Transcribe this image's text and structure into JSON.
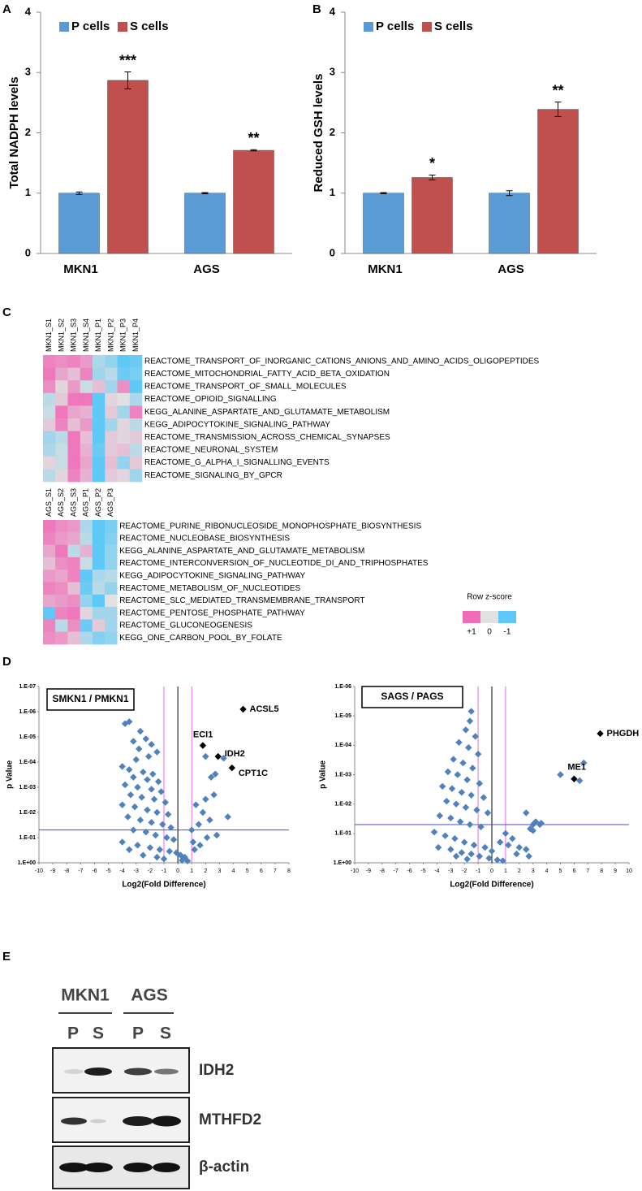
{
  "panel_labels": [
    "A",
    "B",
    "C",
    "D",
    "E"
  ],
  "chart_data": [
    {
      "type": "bar",
      "ylabel": "Total NADPH levels",
      "categories": [
        "MKN1",
        "AGS"
      ],
      "series": [
        {
          "name": "P cells",
          "color": "#5b9bd5",
          "values": [
            1,
            1
          ],
          "errors": [
            0.02,
            0.01
          ]
        },
        {
          "name": "S cells",
          "color": "#c0504d",
          "values": [
            2.87,
            1.71
          ],
          "errors": [
            0.14,
            0.01
          ],
          "significance": [
            "***",
            "**"
          ]
        }
      ],
      "ylim": [
        0,
        4
      ],
      "yticks": [
        0,
        1,
        2,
        3,
        4
      ],
      "legend": "top-left"
    },
    {
      "type": "bar",
      "ylabel": "Reduced GSH levels",
      "categories": [
        "MKN1",
        "AGS"
      ],
      "series": [
        {
          "name": "P cells",
          "color": "#5b9bd5",
          "values": [
            1,
            1
          ],
          "errors": [
            0.01,
            0.04
          ]
        },
        {
          "name": "S cells",
          "color": "#c0504d",
          "values": [
            1.26,
            2.39
          ],
          "errors": [
            0.04,
            0.12
          ],
          "significance": [
            "*",
            "**"
          ]
        }
      ],
      "ylim": [
        0,
        4
      ],
      "yticks": [
        0,
        1,
        2,
        3,
        4
      ],
      "legend": "top-left"
    },
    {
      "type": "heatmap",
      "columns": [
        "MKN1_S1",
        "MKN1_S2",
        "MKN1_S3",
        "MKN1_S4",
        "MKN1_P1",
        "MKN1_P2",
        "MKN1_P3",
        "MKN1_P4"
      ],
      "rows": [
        "REACTOME_TRANSPORT_OF_INORGANIC_CATIONS_ANIONS_AND_AMINO_ACIDS_OLIGOPEPTIDES",
        "REACTOME_MITOCHONDRIAL_FATTY_ACID_BETA_OXIDATION",
        "REACTOME_TRANSPORT_OF_SMALL_MOLECULES",
        "REACTOME_OPIOID_SIGNALLING",
        "KEGG_ALANINE_ASPARTATE_AND_GLUTAMATE_METABOLISM",
        "KEGG_ADIPOCYTOKINE_SIGNALING_PATHWAY",
        "REACTOME_TRANSMISSION_ACROSS_CHEMICAL_SYNAPSES",
        "REACTOME_NEURONAL_SYSTEM",
        "REACTOME_G_ALPHA_I_SIGNALLING_EVENTS",
        "REACTOME_SIGNALING_BY_GPCR"
      ],
      "values": [
        [
          0.8,
          0.7,
          0.8,
          0.6,
          -0.4,
          -0.6,
          -1,
          -0.9
        ],
        [
          0.9,
          0.5,
          0.3,
          0.8,
          -0.5,
          -0.3,
          -0.9,
          -0.8
        ],
        [
          0.7,
          0.1,
          0.6,
          -0.2,
          0.3,
          -0.5,
          0.7,
          -1
        ],
        [
          -0.3,
          0.2,
          0.9,
          0.9,
          -1,
          0.1,
          0,
          -0.4
        ],
        [
          -0.2,
          0.9,
          0.5,
          0.4,
          -1,
          0.2,
          -0.5,
          0.8
        ],
        [
          0.2,
          0.8,
          0.3,
          0.6,
          -1,
          -0.5,
          0.1,
          -0.3
        ],
        [
          -0.5,
          -0.3,
          0.9,
          0.3,
          -1,
          0.2,
          0.1,
          0.2
        ],
        [
          -0.4,
          -0.2,
          0.9,
          0.4,
          -0.9,
          0.2,
          0.3,
          -0.3
        ],
        [
          0.1,
          -0.2,
          0.9,
          0.5,
          -1,
          0.3,
          -0.6,
          0.2
        ],
        [
          -0.3,
          0.1,
          0.8,
          0.4,
          -1,
          0.2,
          0.1,
          -0.5
        ]
      ],
      "zlim": [
        -1,
        1
      ],
      "colors": {
        "low": "#5ec9f7",
        "mid": "#e1e1e1",
        "high": "#f06bb8"
      }
    },
    {
      "type": "heatmap",
      "columns": [
        "AGS_S1",
        "AGS_S2",
        "AGS_S3",
        "AGS_P1",
        "AGS_P2",
        "AGS_P3"
      ],
      "rows": [
        "REACTOME_PURINE_RIBONUCLEOSIDE_MONOPHOSPHATE_BIOSYNTHESIS",
        "REACTOME_NUCLEOBASE_BIOSYNTHESIS",
        "KEGG_ALANINE_ASPARTATE_AND_GLUTAMATE_METABOLISM",
        "REACTOME_INTERCONVERSION_OF_NUCLEOTIDE_DI_AND_TRIPHOSPHATES",
        "KEGG_ADIPOCYTOKINE_SIGNALING_PATHWAY",
        "REACTOME_METABOLISM_OF_NUCLEOTIDES",
        "REACTOME_SLC_MEDIATED_TRANSMEMBRANE_TRANSPORT",
        "REACTOME_PENTOSE_PHOSPHATE_PATHWAY",
        "REACTOME_GLUCONEOGENESIS",
        "KEGG_ONE_CARBON_POOL_BY_FOLATE"
      ],
      "values": [
        [
          0.9,
          0.7,
          0.6,
          -0.4,
          -1,
          -0.8
        ],
        [
          0.8,
          0.6,
          0.5,
          -0.3,
          -1,
          -0.7
        ],
        [
          0.5,
          0.9,
          -0.3,
          0.4,
          -1,
          -0.6
        ],
        [
          0.3,
          0.7,
          0.8,
          -0.2,
          -1,
          -0.6
        ],
        [
          0.6,
          0.5,
          0.8,
          -1,
          -0.4,
          -0.3
        ],
        [
          0.8,
          0.7,
          0.3,
          -0.9,
          -0.3,
          -0.6
        ],
        [
          0.5,
          0.6,
          0.7,
          -0.6,
          -1,
          0.0
        ],
        [
          -1,
          0.8,
          0.9,
          0.1,
          -0.5,
          -0.5
        ],
        [
          0.8,
          -0.3,
          0.7,
          -0.9,
          0.2,
          -0.5
        ],
        [
          0.7,
          0.6,
          0.3,
          -0.4,
          -0.7,
          -0.6
        ]
      ],
      "zlim": [
        -1,
        1
      ],
      "colors": {
        "low": "#5ec9f7",
        "mid": "#e1e1e1",
        "high": "#f06bb8"
      },
      "colorbar": {
        "title": "Row z-score",
        "ticks": [
          {
            "value": 1,
            "label": "+1"
          },
          0,
          -1
        ]
      }
    },
    {
      "type": "scatter",
      "title": "SMKN1 / PMKN1",
      "xlabel": "Log2(Fold Difference)",
      "ylabel": "p Value",
      "log_y": true,
      "xlim": [
        -10,
        8
      ],
      "xticks": [
        -10,
        -9,
        -8,
        -7,
        -6,
        -5,
        -4,
        -3,
        -2,
        -1,
        0,
        1,
        2,
        3,
        4,
        5,
        6,
        7,
        8
      ],
      "ylim": [
        1,
        1e-07
      ],
      "yticks": [
        {
          "value": 1,
          "label": "1.E+00"
        },
        {
          "value": 0.1,
          "label": "1.E-01"
        },
        {
          "value": 0.01,
          "label": "1.E-02"
        },
        {
          "value": 0.001,
          "label": "1.E-03"
        },
        {
          "value": 0.0001,
          "label": "1.E-04"
        },
        {
          "value": 1e-05,
          "label": "1.E-05"
        },
        {
          "value": 1e-06,
          "label": "1.E-06"
        },
        {
          "value": 1e-07,
          "label": "1.E-07"
        }
      ],
      "vlines": [
        {
          "value": -1,
          "color": "#ee66ee"
        },
        {
          "value": 0,
          "color": "#000000"
        },
        {
          "value": 1,
          "color": "#ee66ee"
        }
      ],
      "hlines": [
        {
          "value": 0.05,
          "color": "#4b4bcc"
        }
      ],
      "series": [
        {
          "color": "#4f81bd",
          "x": [
            -3.8,
            -3.5,
            -2.7,
            -2.3,
            -3.2,
            -1.9,
            -2.8,
            -1.5,
            -2.1,
            -3.0,
            -4.0,
            -3.5,
            -2.5,
            -1.8,
            -3.2,
            -2.2,
            -1.4,
            -3.8,
            -2.9,
            -1.9,
            -1.2,
            -3.4,
            -2.6,
            -1.7,
            -0.9,
            -4.0,
            -3.1,
            -2.2,
            -1.5,
            -0.7,
            -3.6,
            -2.7,
            -1.9,
            -1.1,
            -0.5,
            -3.2,
            -2.3,
            -1.6,
            -0.8,
            -0.3,
            -4.0,
            -2.9,
            -2.0,
            -1.3,
            -0.6,
            -0.1,
            0.2,
            0.5,
            -3.5,
            -2.5,
            -1.5,
            -1.0,
            0.3,
            0.7,
            1.2,
            1.6,
            2.1,
            2.8,
            1.0,
            1.5,
            2.3,
            1.8,
            1.3,
            2.0,
            2.6,
            1.1,
            2.4,
            2.7,
            3.3,
            2.0,
            3.6
          ],
          "values": [
            3e-06,
            2.5e-06,
            6e-06,
            1.2e-05,
            1.5e-05,
            2e-05,
            3e-05,
            4e-05,
            6e-05,
            8e-05,
            0.00015,
            0.0002,
            0.00025,
            0.0003,
            0.0004,
            0.0005,
            0.0006,
            0.0008,
            0.001,
            0.0012,
            0.0015,
            0.002,
            0.0025,
            0.003,
            0.004,
            0.005,
            0.006,
            0.008,
            0.01,
            0.012,
            0.015,
            0.02,
            0.025,
            0.03,
            0.04,
            0.05,
            0.06,
            0.08,
            0.1,
            0.12,
            0.15,
            0.2,
            0.25,
            0.3,
            0.35,
            0.4,
            0.5,
            0.6,
            0.3,
            0.5,
            0.6,
            0.7,
            0.8,
            0.85,
            0.3,
            0.2,
            0.1,
            0.08,
            0.05,
            0.03,
            0.02,
            0.01,
            0.005,
            0.003,
            0.002,
            0.15,
            0.0004,
            0.0003,
            7e-05,
            6e-05,
            0.015
          ]
        },
        {
          "color": "#000000",
          "x": [
            4.7,
            1.8,
            2.9,
            3.9
          ],
          "values": [
            8e-07,
            2.2e-05,
            6e-05,
            0.00017
          ],
          "labels": [
            "ACSL5",
            "ECI1",
            "IDH2",
            "CPT1C"
          ]
        }
      ]
    },
    {
      "type": "scatter",
      "title": "SAGS / PAGS",
      "xlabel": "Log2(Fold Difference)",
      "ylabel": "p Value",
      "log_y": true,
      "xlim": [
        -10,
        10
      ],
      "xticks": [
        -10,
        -9,
        -8,
        -7,
        -6,
        -5,
        -4,
        -3,
        -2,
        -1,
        0,
        1,
        2,
        3,
        4,
        5,
        6,
        7,
        8,
        9,
        10
      ],
      "ylim": [
        1,
        1e-06
      ],
      "yticks": [
        {
          "value": 1,
          "label": "1.E+00"
        },
        {
          "value": 0.1,
          "label": "1.E-01"
        },
        {
          "value": 0.01,
          "label": "1.E-02"
        },
        {
          "value": 0.001,
          "label": "1.E-03"
        },
        {
          "value": 0.0001,
          "label": "1.E-04"
        },
        {
          "value": 1e-05,
          "label": "1.E-05"
        },
        {
          "value": 1e-06,
          "label": "1.E-06"
        }
      ],
      "vlines": [
        {
          "value": -1,
          "color": "#ee66ee"
        },
        {
          "value": 0,
          "color": "#000000"
        },
        {
          "value": 1,
          "color": "#ee66ee"
        }
      ],
      "hlines": [
        {
          "value": 0.05,
          "color": "#4b4bcc"
        }
      ],
      "series": [
        {
          "color": "#4f81bd",
          "x": [
            -1.5,
            -1.6,
            -1.9,
            -1.2,
            -2.4,
            -1.7,
            -1.0,
            -2.8,
            -2.1,
            -1.4,
            -3.2,
            -2.5,
            -1.8,
            -0.9,
            -3.6,
            -2.9,
            -2.2,
            -1.5,
            -0.6,
            -3.3,
            -2.6,
            -1.9,
            -1.1,
            -0.3,
            -3.8,
            -3.0,
            -2.3,
            -1.6,
            -0.8,
            -4.2,
            -3.4,
            -2.7,
            -2.0,
            -1.3,
            -0.5,
            0.0,
            -3.9,
            -3.0,
            -2.2,
            -1.5,
            -0.9,
            -0.2,
            0.4,
            0.8,
            -2.6,
            -1.8,
            1.5,
            1.2,
            2.0,
            1.8,
            2.5,
            2.7,
            3.5,
            3.0,
            2.8,
            3.2,
            3.6,
            2.5,
            5.0,
            3.0,
            6.4,
            6.7,
            1.0,
            0.6
          ],
          "values": [
            7e-06,
            1.5e-05,
            3e-05,
            5e-05,
            8e-05,
            0.00012,
            0.0002,
            0.0003,
            0.0004,
            0.0006,
            0.0008,
            0.001,
            0.0015,
            0.002,
            0.0025,
            0.003,
            0.004,
            0.005,
            0.006,
            0.008,
            0.01,
            0.013,
            0.016,
            0.02,
            0.025,
            0.03,
            0.04,
            0.05,
            0.06,
            0.09,
            0.12,
            0.15,
            0.2,
            0.25,
            0.3,
            0.4,
            0.3,
            0.35,
            0.45,
            0.5,
            0.6,
            0.7,
            0.8,
            0.85,
            0.6,
            0.75,
            0.15,
            0.25,
            0.3,
            0.5,
            0.35,
            0.6,
            0.05,
            0.05,
            0.07,
            0.04,
            0.045,
            0.02,
            0.001,
            0.08,
            0.0016,
            0.0004,
            0.1,
            0.2
          ]
        },
        {
          "color": "#000000",
          "x": [
            7.9,
            6.0
          ],
          "values": [
            4e-05,
            0.0014
          ],
          "labels": [
            "PHGDH",
            "ME1"
          ]
        }
      ]
    }
  ],
  "blot": {
    "groups": [
      "MKN1",
      "AGS"
    ],
    "lanes": [
      "P",
      "S",
      "P",
      "S"
    ],
    "proteins": [
      "IDH2",
      "MTHFD2",
      "β-actin"
    ]
  }
}
